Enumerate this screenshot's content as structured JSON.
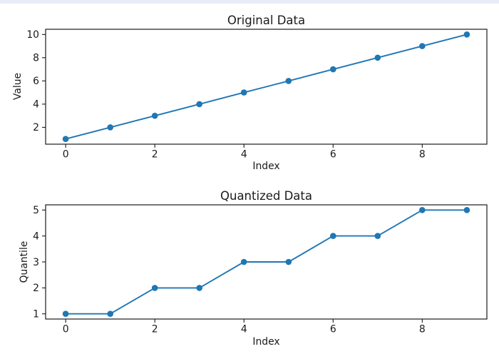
{
  "page": {
    "background_color": "#ffffff",
    "top_strip_color": "#e9ecf8",
    "axis_color": "#1a1a1a"
  },
  "chart_data": [
    {
      "type": "line",
      "title": "Original Data",
      "xlabel": "Index",
      "ylabel": "Value",
      "x": [
        0,
        1,
        2,
        3,
        4,
        5,
        6,
        7,
        8,
        9
      ],
      "y": [
        1,
        2,
        3,
        4,
        5,
        6,
        7,
        8,
        9,
        10
      ],
      "xlim": [
        -0.45,
        9.45
      ],
      "ylim": [
        0.55,
        10.45
      ],
      "xticks": [
        0,
        2,
        4,
        6,
        8
      ],
      "yticks": [
        2,
        4,
        6,
        8,
        10
      ],
      "line_color": "#1f77b4",
      "marker": "circle",
      "grid": false,
      "legend": null
    },
    {
      "type": "line",
      "title": "Quantized Data",
      "xlabel": "Index",
      "ylabel": "Quantile",
      "x": [
        0,
        1,
        2,
        3,
        4,
        5,
        6,
        7,
        8,
        9
      ],
      "y": [
        1,
        1,
        2,
        2,
        3,
        3,
        4,
        4,
        5,
        5
      ],
      "xlim": [
        -0.45,
        9.45
      ],
      "ylim": [
        0.8,
        5.2
      ],
      "xticks": [
        0,
        2,
        4,
        6,
        8
      ],
      "yticks": [
        1,
        2,
        3,
        4,
        5
      ],
      "line_color": "#1f77b4",
      "marker": "circle",
      "grid": false,
      "legend": null
    }
  ]
}
